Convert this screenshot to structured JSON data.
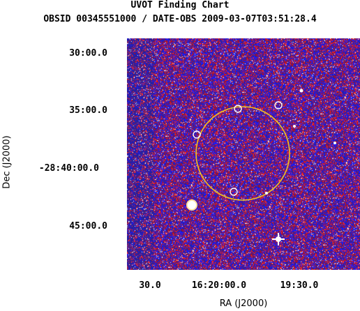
{
  "title": {
    "line1": "UVOT Finding Chart",
    "line2": "OBSID 00345551000 / DATE-OBS 2009-03-07T03:51:28.4"
  },
  "chart_data": {
    "type": "heatmap",
    "title": "UVOT Finding Chart",
    "subtitle": "OBSID 00345551000 / DATE-OBS 2009-03-07T03:51:28.4",
    "xlabel": "RA (J2000)",
    "ylabel": "Dec (J2000)",
    "x_ticks": [
      "30.0",
      "16:20:00.0",
      "19:30.0"
    ],
    "y_ticks": [
      "30:00.0",
      "35:00.0",
      "-28:40:00.0",
      "45:00.0"
    ],
    "colormap": [
      "#2a1f9a",
      "#1a1aff",
      "#c01010",
      "#ff3030",
      "#ffffff"
    ],
    "overlays": {
      "error_circle_color": "#f0c020",
      "source_marker_color": "#ffffff",
      "source_marker_count": 5
    },
    "grid": false,
    "legend": "none"
  }
}
